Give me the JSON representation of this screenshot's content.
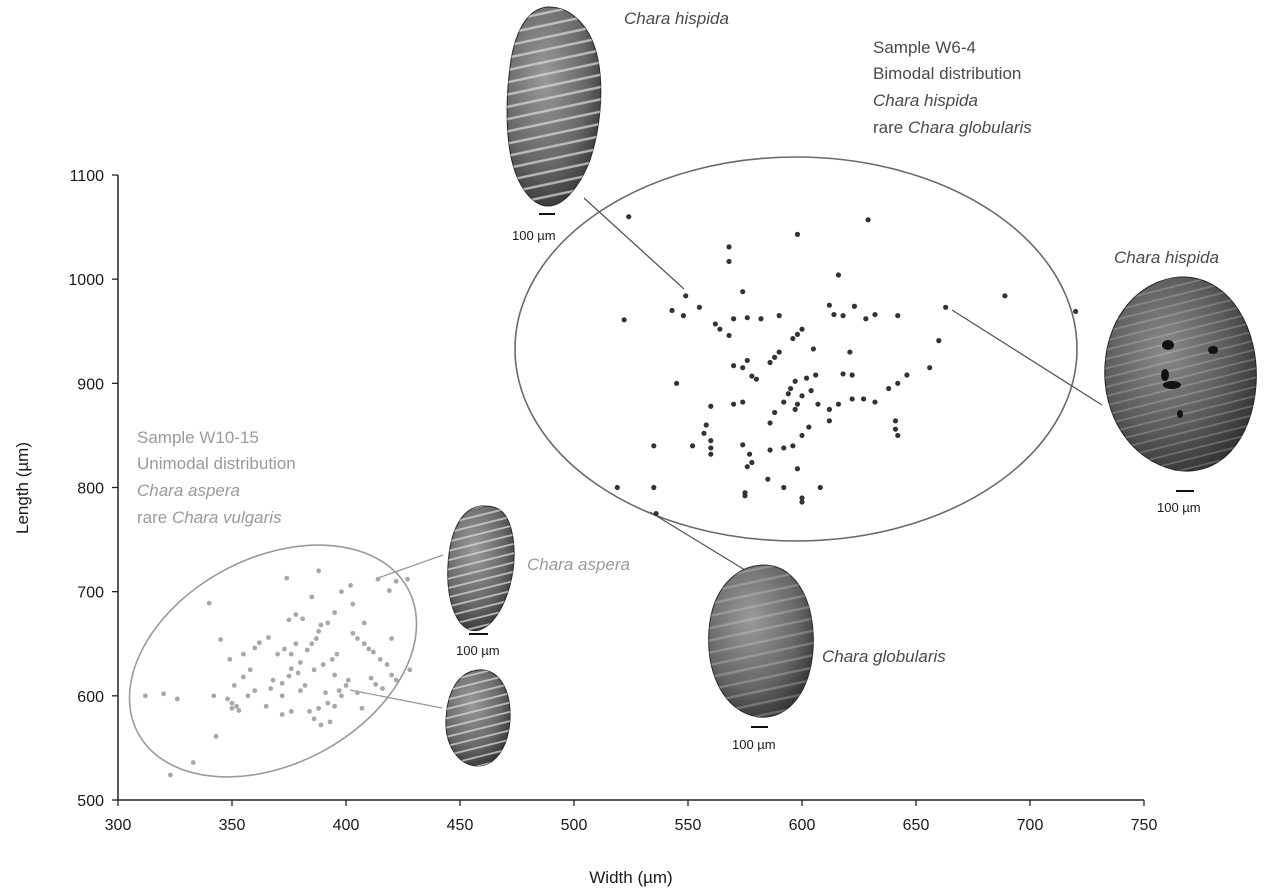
{
  "chart_data": {
    "type": "scatter",
    "title": "",
    "xlabel": "Width (µm)",
    "ylabel": "Length (µm)",
    "xlim": [
      300,
      750
    ],
    "ylim": [
      500,
      1100
    ],
    "x_ticks": [
      "300",
      "350",
      "400",
      "450",
      "500",
      "550",
      "600",
      "650",
      "700",
      "750"
    ],
    "y_ticks": [
      "500",
      "600",
      "700",
      "800",
      "900",
      "1000",
      "1100"
    ],
    "grid": false,
    "colors": {
      "W6-4": "#333333",
      "W10-15": "#a8a8a8",
      "ellipse_w6": "#6a6a6a",
      "ellipse_w10": "#9a9a9a"
    },
    "series": [
      {
        "name": "Sample W6-4",
        "points": [
          [
            524,
            1060
          ],
          [
            629,
            1057
          ],
          [
            598,
            1043
          ],
          [
            568,
            1031
          ],
          [
            568,
            1017
          ],
          [
            616,
            1004
          ],
          [
            549,
            984
          ],
          [
            574,
            988
          ],
          [
            689,
            984
          ],
          [
            543,
            970
          ],
          [
            548,
            965
          ],
          [
            555,
            973
          ],
          [
            612,
            975
          ],
          [
            623,
            974
          ],
          [
            618,
            965
          ],
          [
            614,
            966
          ],
          [
            628,
            962
          ],
          [
            632,
            966
          ],
          [
            642,
            965
          ],
          [
            663,
            973
          ],
          [
            720,
            969
          ],
          [
            522,
            961
          ],
          [
            562,
            957
          ],
          [
            568,
            946
          ],
          [
            564,
            952
          ],
          [
            570,
            962
          ],
          [
            576,
            963
          ],
          [
            582,
            962
          ],
          [
            590,
            965
          ],
          [
            600,
            952
          ],
          [
            598,
            947
          ],
          [
            596,
            943
          ],
          [
            605,
            933
          ],
          [
            621,
            930
          ],
          [
            660,
            941
          ],
          [
            545,
            900
          ],
          [
            570,
            917
          ],
          [
            576,
            922
          ],
          [
            574,
            915
          ],
          [
            578,
            907
          ],
          [
            580,
            904
          ],
          [
            586,
            920
          ],
          [
            588,
            925
          ],
          [
            590,
            930
          ],
          [
            602,
            905
          ],
          [
            606,
            908
          ],
          [
            618,
            909
          ],
          [
            622,
            908
          ],
          [
            656,
            915
          ],
          [
            646,
            908
          ],
          [
            642,
            900
          ],
          [
            638,
            895
          ],
          [
            597,
            902
          ],
          [
            595,
            895
          ],
          [
            594,
            890
          ],
          [
            592,
            882
          ],
          [
            598,
            880
          ],
          [
            600,
            888
          ],
          [
            604,
            893
          ],
          [
            560,
            878
          ],
          [
            570,
            880
          ],
          [
            574,
            882
          ],
          [
            558,
            860
          ],
          [
            557,
            852
          ],
          [
            560,
            845
          ],
          [
            560,
            838
          ],
          [
            560,
            832
          ],
          [
            552,
            840
          ],
          [
            535,
            840
          ],
          [
            574,
            841
          ],
          [
            577,
            832
          ],
          [
            578,
            824
          ],
          [
            576,
            820
          ],
          [
            586,
            836
          ],
          [
            592,
            838
          ],
          [
            596,
            840
          ],
          [
            600,
            850
          ],
          [
            603,
            858
          ],
          [
            607,
            880
          ],
          [
            612,
            875
          ],
          [
            612,
            864
          ],
          [
            616,
            880
          ],
          [
            622,
            885
          ],
          [
            627,
            885
          ],
          [
            632,
            882
          ],
          [
            641,
            864
          ],
          [
            641,
            856
          ],
          [
            642,
            850
          ],
          [
            586,
            862
          ],
          [
            588,
            872
          ],
          [
            597,
            875
          ],
          [
            598,
            818
          ],
          [
            585,
            808
          ],
          [
            592,
            800
          ],
          [
            600,
            790
          ],
          [
            600,
            786
          ],
          [
            608,
            800
          ],
          [
            575,
            795
          ],
          [
            575,
            792
          ],
          [
            519,
            800
          ],
          [
            535,
            800
          ],
          [
            536,
            775
          ]
        ]
      },
      {
        "name": "Sample W10-15",
        "points": [
          [
            312,
            600
          ],
          [
            320,
            602
          ],
          [
            326,
            597
          ],
          [
            323,
            524
          ],
          [
            333,
            536
          ],
          [
            343,
            561
          ],
          [
            342,
            600
          ],
          [
            340,
            689
          ],
          [
            345,
            654
          ],
          [
            352,
            590
          ],
          [
            350,
            593
          ],
          [
            348,
            597
          ],
          [
            351,
            610
          ],
          [
            355,
            618
          ],
          [
            349,
            635
          ],
          [
            355,
            640
          ],
          [
            360,
            646
          ],
          [
            362,
            651
          ],
          [
            366,
            656
          ],
          [
            357,
            600
          ],
          [
            367,
            607
          ],
          [
            372,
            600
          ],
          [
            372,
            612
          ],
          [
            375,
            619
          ],
          [
            379,
            622
          ],
          [
            376,
            626
          ],
          [
            380,
            632
          ],
          [
            376,
            640
          ],
          [
            383,
            644
          ],
          [
            385,
            650
          ],
          [
            387,
            655
          ],
          [
            388,
            662
          ],
          [
            389,
            668
          ],
          [
            392,
            670
          ],
          [
            395,
            680
          ],
          [
            374,
            713
          ],
          [
            388,
            720
          ],
          [
            375,
            673
          ],
          [
            378,
            678
          ],
          [
            381,
            674
          ],
          [
            385,
            695
          ],
          [
            398,
            700
          ],
          [
            402,
            706
          ],
          [
            403,
            688
          ],
          [
            403,
            660
          ],
          [
            405,
            655
          ],
          [
            408,
            650
          ],
          [
            410,
            645
          ],
          [
            412,
            642
          ],
          [
            415,
            635
          ],
          [
            418,
            630
          ],
          [
            420,
            620
          ],
          [
            422,
            615
          ],
          [
            416,
            607
          ],
          [
            413,
            611
          ],
          [
            407,
            588
          ],
          [
            411,
            617
          ],
          [
            408,
            670
          ],
          [
            414,
            712
          ],
          [
            419,
            701
          ],
          [
            422,
            710
          ],
          [
            420,
            655
          ],
          [
            395,
            590
          ],
          [
            392,
            593
          ],
          [
            388,
            588
          ],
          [
            384,
            585
          ],
          [
            386,
            578
          ],
          [
            389,
            572
          ],
          [
            393,
            575
          ],
          [
            398,
            600
          ],
          [
            391,
            603
          ],
          [
            380,
            605
          ],
          [
            382,
            610
          ],
          [
            386,
            625
          ],
          [
            390,
            630
          ],
          [
            394,
            635
          ],
          [
            396,
            640
          ],
          [
            400,
            610
          ],
          [
            401,
            615
          ],
          [
            372,
            582
          ],
          [
            376,
            585
          ],
          [
            365,
            590
          ],
          [
            360,
            605
          ],
          [
            368,
            615
          ],
          [
            358,
            625
          ],
          [
            395,
            620
          ],
          [
            397,
            605
          ],
          [
            370,
            640
          ],
          [
            373,
            645
          ],
          [
            378,
            650
          ],
          [
            405,
            603
          ],
          [
            350,
            588
          ],
          [
            353,
            586
          ],
          [
            428,
            625
          ],
          [
            427,
            712
          ]
        ]
      }
    ],
    "annotations": {
      "w6": {
        "line1": "Sample W6-4",
        "line2": "Bimodal distribution",
        "line3": "Chara hispida",
        "line4_prefix": "rare ",
        "line4_species": "Chara globularis"
      },
      "w10": {
        "line1": "Sample W10-15",
        "line2": "Unimodal distribution",
        "line3": "Chara aspera",
        "line4_prefix": "rare ",
        "line4_species": "Chara vulgaris"
      },
      "specimen_labels": {
        "hispida_top": "Chara hispida",
        "hispida_right": "Chara hispida",
        "aspera": "Chara aspera",
        "globularis": "Chara globularis"
      },
      "scale_bar": "100 µm"
    }
  }
}
